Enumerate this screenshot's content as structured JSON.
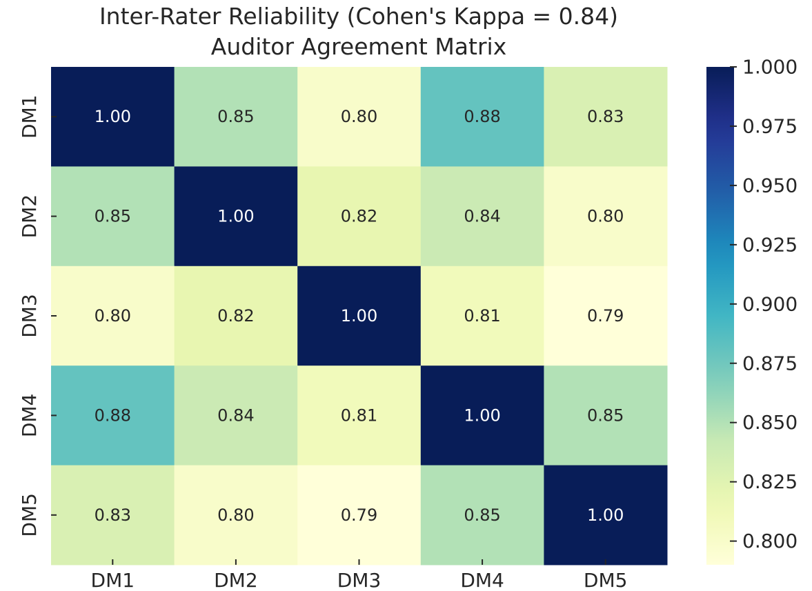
{
  "chart_data": {
    "type": "heatmap",
    "title": "Inter-Rater Reliability (Cohen's Kappa = 0.84)",
    "subtitle": "Auditor Agreement Matrix",
    "xlabel": "",
    "ylabel": "",
    "x_categories": [
      "DM1",
      "DM2",
      "DM3",
      "DM4",
      "DM5"
    ],
    "y_categories": [
      "DM1",
      "DM2",
      "DM3",
      "DM4",
      "DM5"
    ],
    "values": [
      [
        1.0,
        0.85,
        0.8,
        0.88,
        0.83
      ],
      [
        0.85,
        1.0,
        0.82,
        0.84,
        0.8
      ],
      [
        0.8,
        0.82,
        1.0,
        0.81,
        0.79
      ],
      [
        0.88,
        0.84,
        0.81,
        1.0,
        0.85
      ],
      [
        0.83,
        0.8,
        0.79,
        0.85,
        1.0
      ]
    ],
    "value_format": "0.00",
    "colormap": "YlGnBu",
    "colorbar": {
      "range": [
        0.79,
        1.0
      ],
      "ticks": [
        0.8,
        0.825,
        0.85,
        0.875,
        0.9,
        0.925,
        0.95,
        0.975,
        1.0
      ],
      "tick_labels": [
        "0.800",
        "0.825",
        "0.850",
        "0.875",
        "0.900",
        "0.925",
        "0.950",
        "0.975",
        "1.000"
      ],
      "placement": "right"
    },
    "grid": false,
    "legend": "none"
  }
}
